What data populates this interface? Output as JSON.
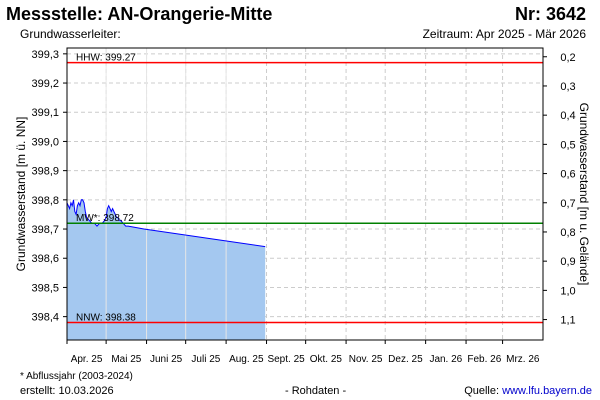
{
  "header": {
    "title": "Messstelle: AN-Orangerie-Mitte",
    "station_nr": "Nr: 3642",
    "aquifer_label": "Grundwasserleiter:",
    "period": "Zeitraum: Apr 2025 - Mär 2026"
  },
  "footer": {
    "footnote": "* Abflussjahr (2003-2024)",
    "created": "erstellt:  10.03.2026",
    "data_status": "- Rohdaten -",
    "source_prefix": "Quelle: ",
    "source_link": "www.lfu.bayern.de"
  },
  "chart_data": {
    "type": "area",
    "ylabel_left": "Grundwasserstand [m ü. NN]",
    "ylabel_right": "Grundwasserstand [m u. Gelände]",
    "ylim": [
      398.32,
      399.32
    ],
    "yticks_left": [
      {
        "value": 398.4,
        "label": "398,4"
      },
      {
        "value": 398.5,
        "label": "398,5"
      },
      {
        "value": 398.6,
        "label": "398,6"
      },
      {
        "value": 398.7,
        "label": "398,7"
      },
      {
        "value": 398.8,
        "label": "398,8"
      },
      {
        "value": 398.9,
        "label": "398,9"
      },
      {
        "value": 399.0,
        "label": "399,0"
      },
      {
        "value": 399.1,
        "label": "399,1"
      },
      {
        "value": 399.2,
        "label": "399,2"
      },
      {
        "value": 399.3,
        "label": "399,3"
      }
    ],
    "yticks_right": [
      {
        "value": 399.29,
        "label": "0,2"
      },
      {
        "value": 399.19,
        "label": "0,3"
      },
      {
        "value": 399.09,
        "label": "0,4"
      },
      {
        "value": 398.99,
        "label": "0,5"
      },
      {
        "value": 398.89,
        "label": "0,6"
      },
      {
        "value": 398.79,
        "label": "0,7"
      },
      {
        "value": 398.69,
        "label": "0,8"
      },
      {
        "value": 398.59,
        "label": "0,9"
      },
      {
        "value": 398.49,
        "label": "1,0"
      },
      {
        "value": 398.39,
        "label": "1,1"
      }
    ],
    "xlim": [
      "2025-04-01",
      "2026-04-01"
    ],
    "xticks": [
      {
        "date": "2025-04-01",
        "label": "Apr. 25"
      },
      {
        "date": "2025-05-01",
        "label": "Mai 25"
      },
      {
        "date": "2025-06-01",
        "label": "Juni 25"
      },
      {
        "date": "2025-07-01",
        "label": "Juli 25"
      },
      {
        "date": "2025-08-01",
        "label": "Aug. 25"
      },
      {
        "date": "2025-09-01",
        "label": "Sept. 25"
      },
      {
        "date": "2025-10-01",
        "label": "Okt. 25"
      },
      {
        "date": "2025-11-01",
        "label": "Nov. 25"
      },
      {
        "date": "2025-12-01",
        "label": "Dez. 25"
      },
      {
        "date": "2026-01-01",
        "label": "Jan. 26"
      },
      {
        "date": "2026-02-01",
        "label": "Feb. 26"
      },
      {
        "date": "2026-03-01",
        "label": "Mrz. 26"
      }
    ],
    "grid": true,
    "reference_lines": [
      {
        "label": "HHW: 399.27",
        "value": 399.27,
        "color": "#ff0000"
      },
      {
        "label": "MW*: 398.72",
        "value": 398.72,
        "color": "#008000"
      },
      {
        "label": "NNW: 398.38",
        "value": 398.38,
        "color": "#ff0000"
      }
    ],
    "series": [
      {
        "line_color": "#0000ff",
        "fill_color": "#a4c8f0",
        "points": [
          [
            "2025-04-01",
            398.79
          ],
          [
            "2025-04-02",
            398.78
          ],
          [
            "2025-04-03",
            398.77
          ],
          [
            "2025-04-04",
            398.79
          ],
          [
            "2025-04-05",
            398.78
          ],
          [
            "2025-04-06",
            398.8
          ],
          [
            "2025-04-07",
            398.76
          ],
          [
            "2025-04-08",
            398.75
          ],
          [
            "2025-04-09",
            398.78
          ],
          [
            "2025-04-10",
            398.79
          ],
          [
            "2025-04-11",
            398.78
          ],
          [
            "2025-04-12",
            398.8
          ],
          [
            "2025-04-13",
            398.8
          ],
          [
            "2025-04-14",
            398.79
          ],
          [
            "2025-04-15",
            398.76
          ],
          [
            "2025-04-16",
            398.74
          ],
          [
            "2025-04-18",
            398.73
          ],
          [
            "2025-04-20",
            398.72
          ],
          [
            "2025-04-22",
            398.72
          ],
          [
            "2025-04-24",
            398.71
          ],
          [
            "2025-04-26",
            398.72
          ],
          [
            "2025-04-28",
            398.72
          ],
          [
            "2025-04-30",
            398.73
          ],
          [
            "2025-05-01",
            398.74
          ],
          [
            "2025-05-02",
            398.77
          ],
          [
            "2025-05-03",
            398.78
          ],
          [
            "2025-05-04",
            398.77
          ],
          [
            "2025-05-05",
            398.76
          ],
          [
            "2025-05-06",
            398.77
          ],
          [
            "2025-05-07",
            398.76
          ],
          [
            "2025-05-08",
            398.75
          ],
          [
            "2025-05-09",
            398.74
          ],
          [
            "2025-05-10",
            398.74
          ],
          [
            "2025-05-11",
            398.73
          ],
          [
            "2025-05-12",
            398.73
          ],
          [
            "2025-05-14",
            398.72
          ],
          [
            "2025-05-16",
            398.71
          ],
          [
            "2025-05-18",
            398.71
          ],
          [
            "2025-05-19",
            398.709
          ],
          [
            "2025-05-30",
            398.7
          ],
          [
            "2025-06-30",
            398.68
          ],
          [
            "2025-07-31",
            398.66
          ],
          [
            "2025-08-31",
            398.64
          ]
        ]
      }
    ]
  }
}
